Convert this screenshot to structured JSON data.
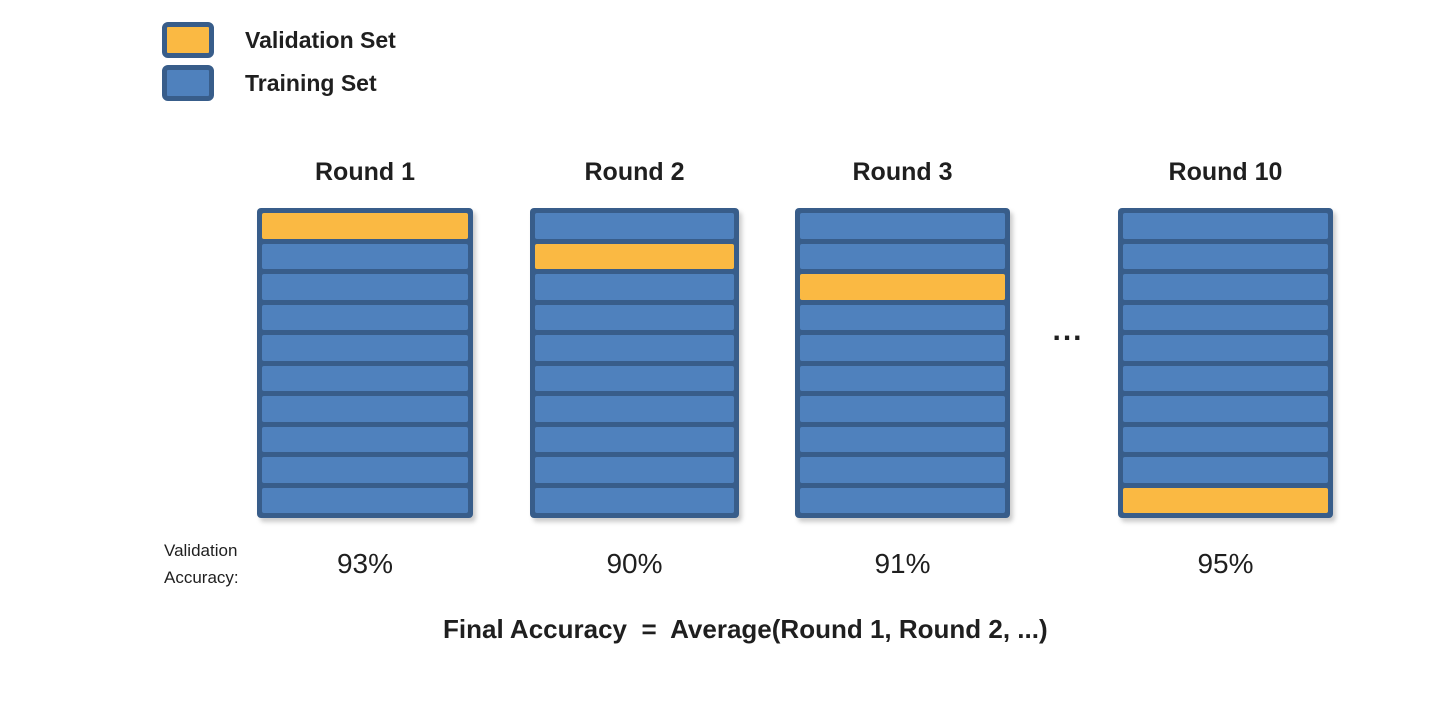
{
  "legend": {
    "items": [
      {
        "label": "Validation Set",
        "color": "#FAB943"
      },
      {
        "label": "Training Set",
        "color": "#4F81BD"
      }
    ]
  },
  "diagram": {
    "num_folds": 10,
    "colors": {
      "validation": "#FAB943",
      "training": "#4F81BD",
      "border": "#385D8A",
      "text": "#1f1f1f"
    },
    "rounds": [
      {
        "title": "Round 1",
        "validation_fold": 1,
        "accuracy": "93%"
      },
      {
        "title": "Round 2",
        "validation_fold": 2,
        "accuracy": "90%"
      },
      {
        "title": "Round 3",
        "validation_fold": 3,
        "accuracy": "91%"
      },
      {
        "title": "Round 10",
        "validation_fold": 10,
        "accuracy": "95%"
      }
    ],
    "ellipsis": "..."
  },
  "labels": {
    "validation_accuracy_line1": "Validation",
    "validation_accuracy_line2": "Accuracy:",
    "formula": "Final Accuracy  =  Average(Round 1, Round 2, ...)"
  }
}
